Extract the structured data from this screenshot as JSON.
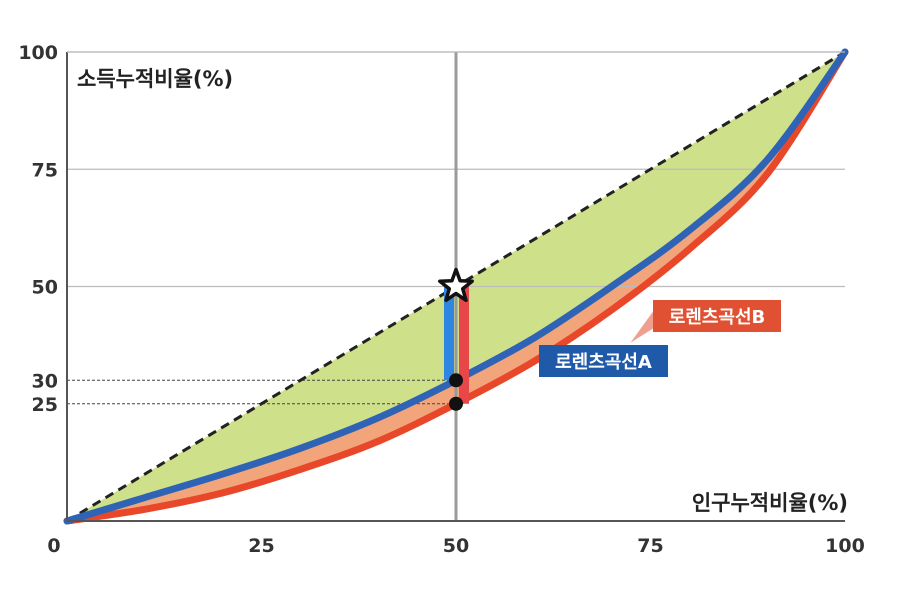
{
  "chart_data": {
    "type": "area",
    "xlabel": "인구누적비율(%)",
    "ylabel": "소득누적비율(%)",
    "xlim": [
      0,
      100
    ],
    "ylim": [
      0,
      100
    ],
    "x_ticks": [
      0,
      25,
      50,
      75,
      100
    ],
    "y_ticks": [
      25,
      30,
      50,
      75,
      100
    ],
    "grid": true,
    "series": [
      {
        "name": "로렌츠곡선A",
        "color": "#2e63b5",
        "x": [
          0,
          10,
          20,
          30,
          40,
          50,
          60,
          70,
          80,
          90,
          100
        ],
        "y": [
          0,
          5,
          10,
          15.5,
          22,
          30,
          39,
          50,
          62,
          77,
          100
        ]
      },
      {
        "name": "로렌츠곡선B",
        "color": "#e8472a",
        "x": [
          0,
          10,
          20,
          30,
          40,
          50,
          60,
          70,
          80,
          90,
          100
        ],
        "y": [
          0,
          2.5,
          6,
          11,
          17,
          25,
          34,
          45,
          58,
          74,
          100
        ]
      }
    ],
    "equality_line": {
      "x": [
        0,
        100
      ],
      "y": [
        0,
        100
      ]
    },
    "markers": [
      {
        "x": 50,
        "y": 50,
        "shape": "star"
      },
      {
        "x": 50,
        "y": 30,
        "shape": "dot"
      },
      {
        "x": 50,
        "y": 25,
        "shape": "dot"
      }
    ],
    "reference_lines": [
      {
        "axis": "x",
        "value": 50
      },
      {
        "axis": "y",
        "value": 30
      },
      {
        "axis": "y",
        "value": 25
      }
    ],
    "colors": {
      "area_a": "#cfe08a",
      "area_b": "#f2a47a",
      "line_a": "#2e63b5",
      "line_b": "#e8472a",
      "tag_a": "#1f5aa8",
      "tag_b": "#e05032",
      "grid": "#bbbbbb",
      "axis": "#555555",
      "bar_a": "#2f86e0",
      "bar_b": "#e8474a"
    }
  }
}
